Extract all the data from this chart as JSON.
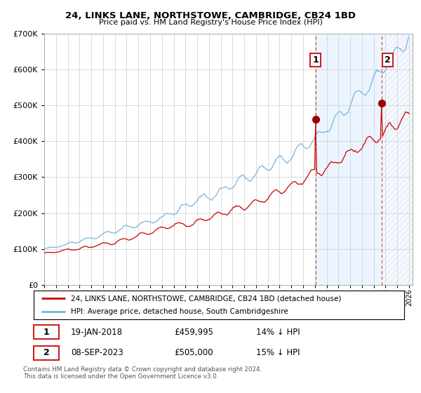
{
  "title": "24, LINKS LANE, NORTHSTOWE, CAMBRIDGE, CB24 1BD",
  "subtitle": "Price paid vs. HM Land Registry's House Price Index (HPI)",
  "legend_line1": "24, LINKS LANE, NORTHSTOWE, CAMBRIDGE, CB24 1BD (detached house)",
  "legend_line2": "HPI: Average price, detached house, South Cambridgeshire",
  "transaction1_date": "19-JAN-2018",
  "transaction1_price": 459995,
  "transaction1_label": "£459,995",
  "transaction1_pct": "14% ↓ HPI",
  "transaction2_date": "08-SEP-2023",
  "transaction2_price": 505000,
  "transaction2_label": "£505,000",
  "transaction2_pct": "15% ↓ HPI",
  "footer": "Contains HM Land Registry data © Crown copyright and database right 2024.\nThis data is licensed under the Open Government Licence v3.0.",
  "hpi_color": "#7ab4d8",
  "price_color": "#cc0000",
  "marker_color": "#990000",
  "dashed_line_color": "#cc4444",
  "background_shade": "#ddeeff",
  "hatch_color": "#bbccdd",
  "ylim_max": 700000,
  "t1_year": 2018.05,
  "t2_year": 2023.68,
  "seed": 42
}
